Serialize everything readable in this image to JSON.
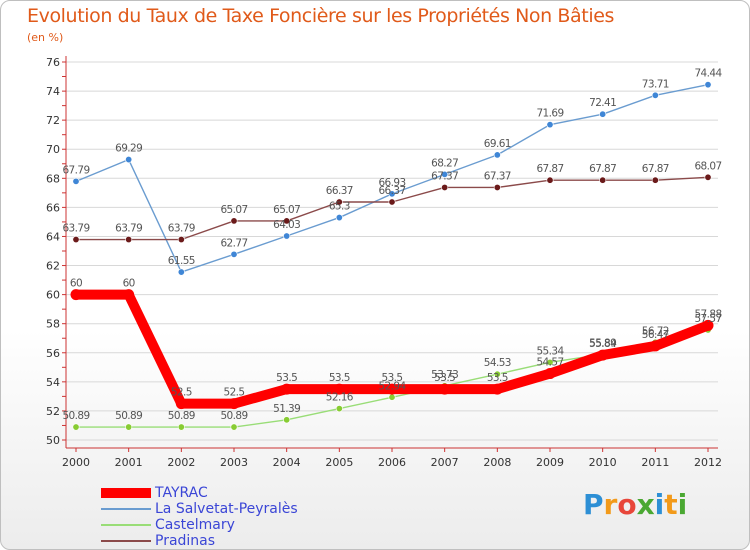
{
  "header": {
    "title": "Evolution du Taux de Taxe Foncière sur les Propriétés Non Bâties",
    "unit": "(en %)"
  },
  "logo": {
    "text": "Proxiti"
  },
  "colors": {
    "title": "#e05a1a",
    "legend_text": "#3b46d6",
    "axis": "#cc3333",
    "grid": "#d8d8d8"
  },
  "chart_data": {
    "type": "line",
    "title": "Evolution du Taux de Taxe Foncière sur les Propriétés Non Bâties",
    "ylabel": "(en %)",
    "xlabel": "",
    "x": [
      "2000",
      "2001",
      "2002",
      "2003",
      "2004",
      "2005",
      "2006",
      "2007",
      "2008",
      "2009",
      "2010",
      "2011",
      "2012"
    ],
    "ylim": [
      50,
      76
    ],
    "yticks": [
      50,
      52,
      54,
      56,
      58,
      60,
      62,
      64,
      66,
      68,
      70,
      72,
      74,
      76
    ],
    "grid": "horizontal",
    "legend_position": "bottom-left",
    "series": [
      {
        "name": "TAYRAC",
        "color": "#ff0000",
        "marker_color": "#ff0000",
        "width": "thick",
        "values": [
          60,
          60,
          52.5,
          52.5,
          53.5,
          53.5,
          53.5,
          53.5,
          53.5,
          54.57,
          55.84,
          56.47,
          57.88
        ],
        "labels": [
          "60",
          "60",
          "52.5",
          "52.5",
          "53.5",
          "53.5",
          "53.5",
          "53.5",
          "53.5",
          "54.57",
          "55.84",
          "56.47",
          "57.88"
        ]
      },
      {
        "name": "La Salvetat-Peyralès",
        "color": "#6a9cd0",
        "marker_color": "#3f86d6",
        "width": "thin",
        "values": [
          67.79,
          69.29,
          61.55,
          62.77,
          64.03,
          65.3,
          66.93,
          68.27,
          69.61,
          71.69,
          72.41,
          73.71,
          74.44
        ],
        "labels": [
          "67.79",
          "69.29",
          "61.55",
          "62.77",
          "64.03",
          "65.3",
          "66.93",
          "68.27",
          "69.61",
          "71.69",
          "72.41",
          "73.71",
          "74.44"
        ]
      },
      {
        "name": "Castelmary",
        "color": "#99dd77",
        "marker_color": "#88cc33",
        "width": "thin",
        "values": [
          50.89,
          50.89,
          50.89,
          50.89,
          51.39,
          52.16,
          52.94,
          53.73,
          54.53,
          55.34,
          55.89,
          56.72,
          57.57
        ],
        "labels": [
          "50.89",
          "50.89",
          "50.89",
          "50.89",
          "51.39",
          "52.16",
          "52.94",
          "53.73",
          "54.53",
          "55.34",
          "55.89",
          "56.72",
          "57.57"
        ]
      },
      {
        "name": "Pradinas",
        "color": "#8b4a4a",
        "marker_color": "#6b1a1a",
        "width": "thin",
        "values": [
          63.79,
          63.79,
          63.79,
          65.07,
          65.07,
          66.37,
          66.37,
          67.37,
          67.37,
          67.87,
          67.87,
          67.87,
          68.07
        ],
        "labels": [
          "63.79",
          "63.79",
          "63.79",
          "65.07",
          "65.07",
          "66.37",
          "66.37",
          "67.37",
          "67.37",
          "67.87",
          "67.87",
          "67.87",
          "68.07"
        ]
      }
    ]
  }
}
